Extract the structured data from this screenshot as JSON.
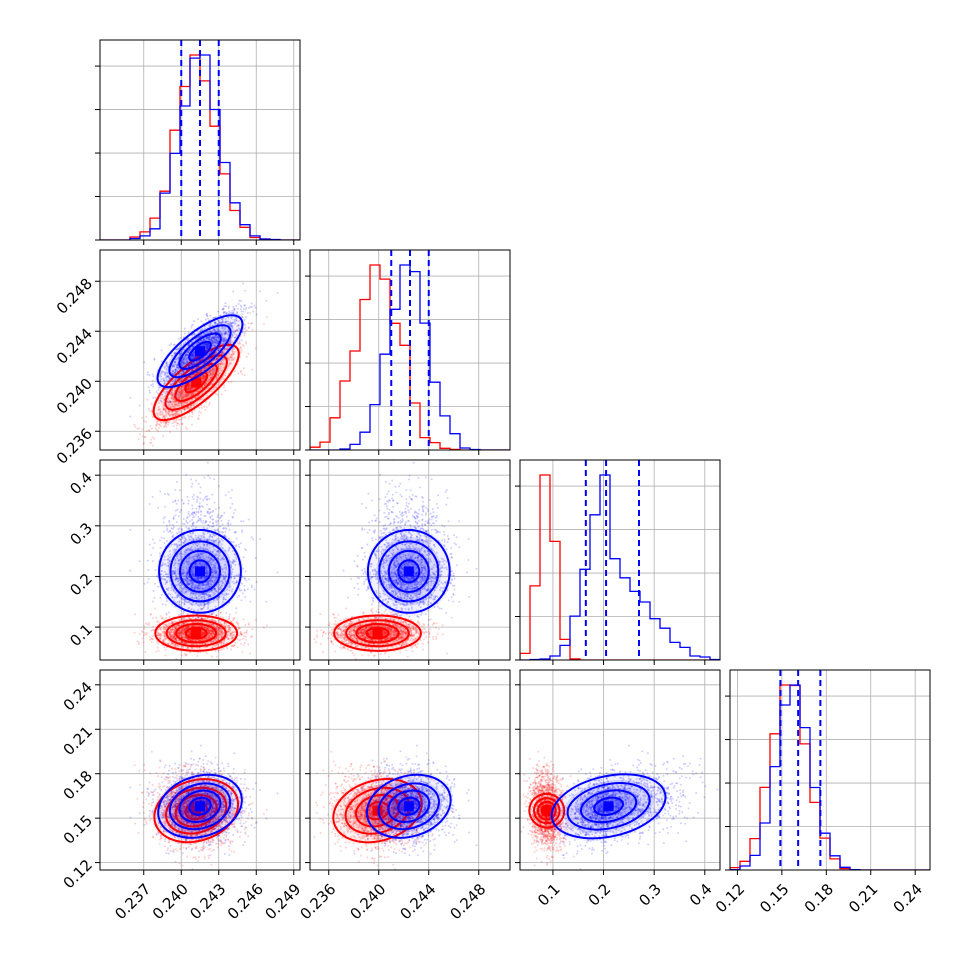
{
  "chart_data": {
    "type": "corner",
    "title": "",
    "grid": true,
    "colors": {
      "red": "#ff0000",
      "blue": "#0000ff"
    },
    "n_parameters": 4,
    "parameter_ranges": [
      [
        0.2335,
        0.2495
      ],
      [
        0.2345,
        0.2505
      ],
      [
        0.035,
        0.43
      ],
      [
        0.115,
        0.25
      ]
    ],
    "ticks": [
      {
        "values": [
          0.237,
          0.24,
          0.243,
          0.246,
          0.249
        ],
        "labels": [
          "0.237",
          "0.240",
          "0.243",
          "0.246",
          "0.249"
        ]
      },
      {
        "values": [
          0.236,
          0.24,
          0.244,
          0.248
        ],
        "labels": [
          "0.236",
          "0.240",
          "0.244",
          "0.248"
        ]
      },
      {
        "values": [
          0.1,
          0.2,
          0.3,
          0.4
        ],
        "labels": [
          "0.1",
          "0.2",
          "0.3",
          "0.4"
        ]
      },
      {
        "values": [
          0.12,
          0.15,
          0.18,
          0.21,
          0.24
        ],
        "labels": [
          "0.12",
          "0.15",
          "0.18",
          "0.21",
          "0.24"
        ]
      }
    ],
    "series": [
      {
        "color": "red",
        "means": [
          0.2412,
          0.2399,
          0.088,
          0.155
        ],
        "sigmas": [
          0.0016,
          0.0017,
          0.016,
          0.012
        ],
        "correlations": {
          "0-1": 0.8,
          "0-3": 0.35,
          "1-3": 0.35,
          "2-3": -0.1
        }
      },
      {
        "color": "blue",
        "means": [
          0.2415,
          0.2424,
          0.21,
          0.158
        ],
        "sigmas": [
          0.0016,
          0.0016,
          0.055,
          0.012
        ],
        "correlations": {
          "0-1": 0.8,
          "0-3": 0.35,
          "1-3": 0.35,
          "2-3": 0.35
        }
      }
    ],
    "quantiles": [
      {
        "parameter": 1,
        "values": [
          0.24,
          0.2415,
          0.243
        ]
      },
      {
        "parameter": 2,
        "values": [
          0.241,
          0.2425,
          0.244
        ]
      },
      {
        "parameter": 3,
        "values": [
          0.165,
          0.205,
          0.27
        ]
      },
      {
        "parameter": 4,
        "values": [
          0.149,
          0.161,
          0.176
        ]
      }
    ]
  }
}
